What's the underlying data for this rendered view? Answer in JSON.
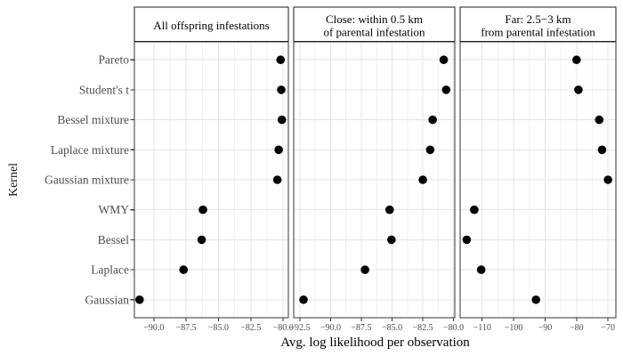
{
  "chart_data": {
    "type": "scatter",
    "xlabel": "Avg. log likelihood per observation",
    "ylabel": "Kernel",
    "legend": "none",
    "grid": "major-and-minor-x, major-y",
    "categories_top_to_bottom": [
      "Pareto",
      "Student's t",
      "Bessel mixture",
      "Laplace mixture",
      "Gaussian mixture",
      "WMY",
      "Bessel",
      "Laplace",
      "Gaussian"
    ],
    "panels": [
      {
        "title_lines": [
          "All offspring infestations"
        ],
        "xlim": [
          -91.5,
          -79.6
        ],
        "xticks": [
          -90.0,
          -87.5,
          -85.0,
          -82.5,
          -80.0
        ],
        "xtick_labels": [
          "−90.0",
          "−87.5",
          "−85.0",
          "−82.5",
          "−80.0"
        ],
        "values": [
          -80.2,
          -80.15,
          -80.1,
          -80.35,
          -80.45,
          -86.2,
          -86.3,
          -87.7,
          -91.1
        ]
      },
      {
        "title_lines": [
          "Close: within 0.5 km",
          "of parental infestation"
        ],
        "xlim": [
          -93.0,
          -79.9
        ],
        "xticks": [
          -92.5,
          -90.0,
          -87.5,
          -85.0,
          -82.5,
          -80.0
        ],
        "xtick_labels": [
          "−92.5",
          "−90.0",
          "−87.5",
          "−85.0",
          "−82.5",
          "−80.0"
        ],
        "values": [
          -80.8,
          -80.6,
          -81.7,
          -81.9,
          -82.5,
          -85.2,
          -85.05,
          -87.2,
          -92.2
        ]
      },
      {
        "title_lines": [
          "Far: 2.5−3 km",
          "from parental infestation"
        ],
        "xlim": [
          -117.0,
          -67.5
        ],
        "xticks": [
          -110,
          -100,
          -90,
          -80,
          -70
        ],
        "xtick_labels": [
          "−110",
          "−100",
          "−90",
          "−80",
          "−70"
        ],
        "values": [
          -80.0,
          -79.4,
          -72.8,
          -71.9,
          -70.0,
          -112.5,
          -114.9,
          -110.3,
          -92.9
        ]
      }
    ]
  },
  "colors": {
    "background": "#ffffff",
    "panel_background": "#ffffff",
    "panel_border": "#333333",
    "strip_background": "#ffffff",
    "strip_border": "#1a1a1a",
    "grid_major": "#e4e4e4",
    "grid_minor": "#f1f1f1",
    "tick_mark": "#333333",
    "axis_text": "#4d4d4d",
    "title_text": "#000000",
    "dot": "#000000"
  }
}
